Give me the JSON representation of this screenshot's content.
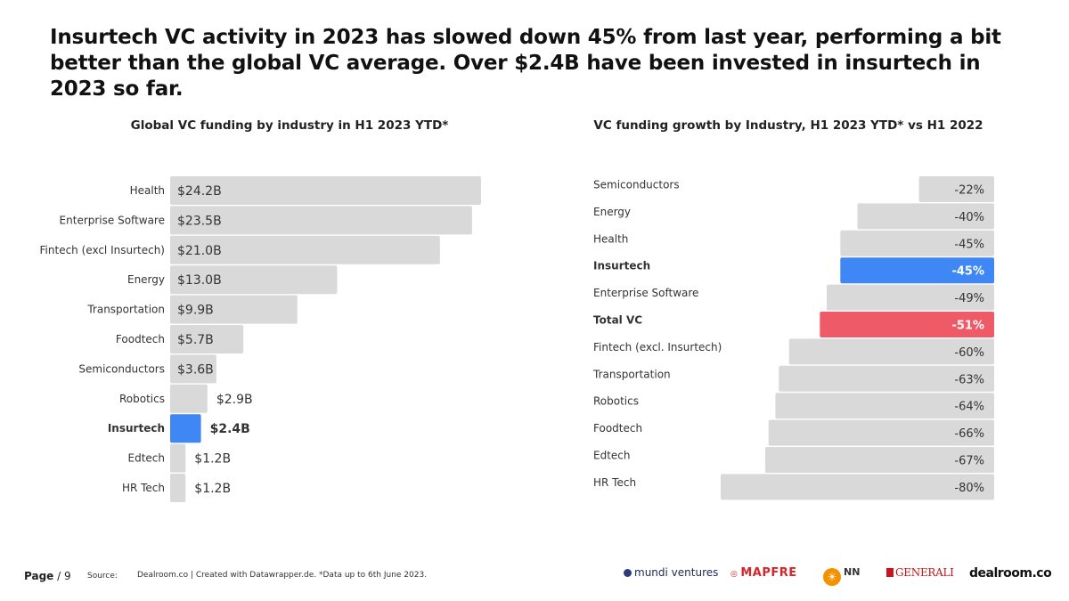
{
  "headline": "Insurtech VC activity in 2023 has slowed down 45% from last year, performing a bit better than the global VC average. Over $2.4B have been invested in insurtech in 2023 so far.",
  "chart_data": [
    {
      "type": "bar",
      "orientation": "horizontal",
      "title": "Global VC funding by industry in H1 2023 YTD*",
      "categories": [
        "Health",
        "Enterprise Software",
        "Fintech (excl Insurtech)",
        "Energy",
        "Transportation",
        "Foodtech",
        "Semiconductors",
        "Robotics",
        "Insurtech",
        "Edtech",
        "HR Tech"
      ],
      "values": [
        24.2,
        23.5,
        21.0,
        13.0,
        9.9,
        5.7,
        3.6,
        2.9,
        2.4,
        1.2,
        1.2
      ],
      "value_labels": [
        "$24.2B",
        "$23.5B",
        "$21.0B",
        "$13.0B",
        "$9.9B",
        "$5.7B",
        "$3.6B",
        "$2.9B",
        "$2.4B",
        "$1.2B",
        "$1.2B"
      ],
      "unit": "$B",
      "highlight": "Insurtech",
      "xlim": [
        0,
        24.2
      ],
      "colors": {
        "default": "#d9d9d9",
        "highlight": "#3f87f5"
      }
    },
    {
      "type": "bar",
      "orientation": "horizontal",
      "title": "VC funding growth by Industry, H1 2023 YTD* vs H1 2022",
      "categories": [
        "Semiconductors",
        "Energy",
        "Health",
        "Insurtech",
        "Enterprise Software",
        "Total VC",
        "Fintech (excl. Insurtech)",
        "Transportation",
        "Robotics",
        "Foodtech",
        "Edtech",
        "HR Tech"
      ],
      "values": [
        -22,
        -40,
        -45,
        -45,
        -49,
        -51,
        -60,
        -63,
        -64,
        -66,
        -67,
        -80
      ],
      "value_labels": [
        "-22%",
        "-40%",
        "-45%",
        "-45%",
        "-49%",
        "-51%",
        "-60%",
        "-63%",
        "-64%",
        "-66%",
        "-67%",
        "-80%"
      ],
      "unit": "%",
      "highlight": {
        "Insurtech": "#3f87f5",
        "Total VC": "#ef5a67"
      },
      "xlim": [
        -80,
        0
      ],
      "colors": {
        "default": "#d9d9d9"
      }
    }
  ],
  "footer": {
    "page_label": "Page",
    "page_number": "/ 9",
    "source_label": "Source:",
    "source_text": "Dealroom.co | Created with Datawrapper.de.  *Data up to 6th June 2023."
  },
  "logos": {
    "mundi": "mundi ventures",
    "mapfre": "MAPFRE",
    "nn": "NN",
    "generali": "GENERALI",
    "dealroom": "dealroom.co"
  }
}
